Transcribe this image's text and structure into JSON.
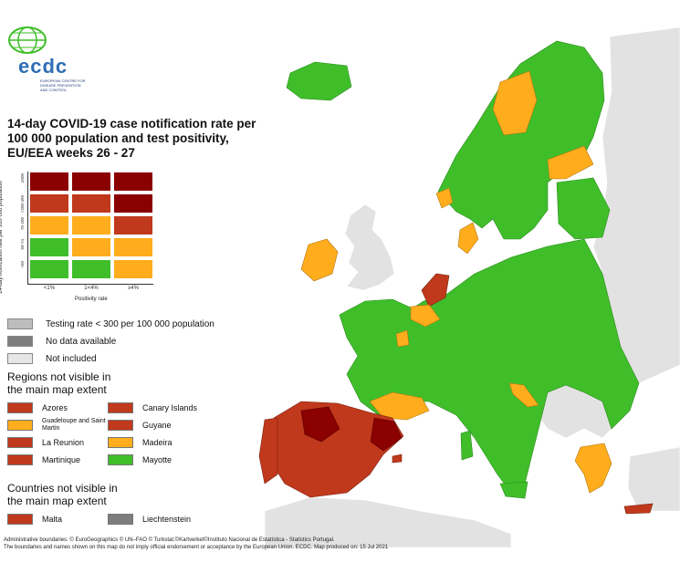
{
  "logo": {
    "text": "ecdc",
    "subtitle": "EUROPEAN CENTRE FOR DISEASE PREVENTION AND CONTROL"
  },
  "title": "14-day COVID-19 case notification rate per 100 000 population and test positivity, EU/EEA weeks 26 - 27",
  "matrix": {
    "y_axis_title": "14-day notification rate per 100 000 population",
    "y_ticks": [
      "≥500",
      "<200-499",
      "75-200",
      "50-74",
      "<50"
    ],
    "x_ticks": [
      "<1%",
      "1<4%",
      "≥4%"
    ],
    "x_axis_title": "Positivity rate",
    "rows": [
      [
        "#8b0000",
        "#8b0000",
        "#8b0000"
      ],
      [
        "#c0391c",
        "#c0391c",
        "#8b0000"
      ],
      [
        "#ffad1c",
        "#ffad1c",
        "#c0391c"
      ],
      [
        "#3fbe2a",
        "#ffad1c",
        "#ffad1c"
      ],
      [
        "#3fbe2a",
        "#3fbe2a",
        "#ffad1c"
      ]
    ]
  },
  "legend": [
    {
      "label": "Testing rate < 300 per 100 000 population",
      "color": "#bdbdbd"
    },
    {
      "label": "No data available",
      "color": "#7d7d7d"
    },
    {
      "label": "Not included",
      "color": "#e6e6e6"
    }
  ],
  "regions_title": "Regions not visible in the main map extent",
  "regions": [
    {
      "label": "Azores",
      "color": "#c0391c"
    },
    {
      "label": "Canary Islands",
      "color": "#c0391c"
    },
    {
      "label": "Guadeloupe and Saint Martin",
      "color": "#ffad1c",
      "small": true
    },
    {
      "label": "Guyane",
      "color": "#c0391c"
    },
    {
      "label": "La Reunion",
      "color": "#c0391c"
    },
    {
      "label": "Madeira",
      "color": "#ffad1c"
    },
    {
      "label": "Martinique",
      "color": "#c0391c"
    },
    {
      "label": "Mayotte",
      "color": "#3fbe2a"
    }
  ],
  "countries_title": "Countries not visible in the main map extent",
  "countries": [
    {
      "label": "Malta",
      "color": "#c0391c"
    },
    {
      "label": "Liechtenstein",
      "color": "#7d7d7d"
    }
  ],
  "footer": {
    "line1": "Administrative boundaries: © EuroGeographics © UN–FAO © Turkstat.©Kartverket©Instituto Nacional de Estatística - Statistics Portugal.",
    "line2": "The boundaries and names shown on this map do not imply official endorsement or acceptance by the European Union. ECDC. Map produced on: 15 Jul 2021"
  },
  "colors": {
    "green": "#3fbe2a",
    "orange": "#ffad1c",
    "red": "#c0391c",
    "darkred": "#8b0000",
    "grey_light": "#e6e6e6",
    "grey": "#bdbdbd",
    "sea": "#ffffff"
  }
}
